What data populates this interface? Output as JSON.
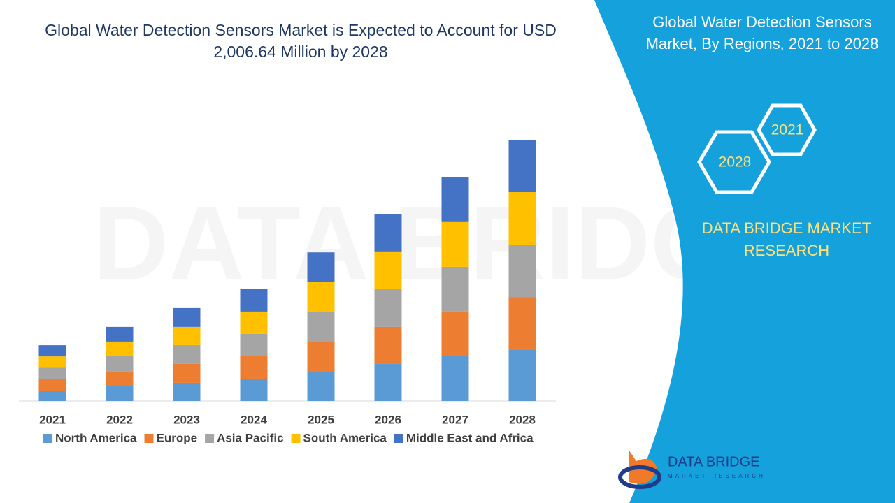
{
  "chart_data": {
    "type": "stacked_bar",
    "title": "Global Water Detection Sensors Market  is Expected to Account for USD 2,006.64 Million by 2028",
    "categories": [
      "2021",
      "2022",
      "2023",
      "2024",
      "2025",
      "2026",
      "2027",
      "2028"
    ],
    "series": [
      {
        "name": "North America",
        "color": "#5b9bd5",
        "values": [
          80,
          113,
          140,
          172,
          225,
          285,
          344,
          397
        ]
      },
      {
        "name": "Europe",
        "color": "#ed7d31",
        "values": [
          91,
          113,
          145,
          172,
          231,
          285,
          344,
          403
        ]
      },
      {
        "name": "Asia Pacific",
        "color": "#a5a5a5",
        "values": [
          86,
          118,
          145,
          172,
          231,
          290,
          344,
          403
        ]
      },
      {
        "name": "South America",
        "color": "#ffc000",
        "values": [
          86,
          113,
          140,
          172,
          231,
          285,
          344,
          403
        ]
      },
      {
        "name": "Middle East and Africa",
        "color": "#4472c4",
        "values": [
          86,
          113,
          145,
          172,
          225,
          290,
          344,
          403
        ]
      }
    ]
  },
  "panel": {
    "title": "Global Water Detection Sensors Market, By Regions, 2021 to 2028",
    "hex_top": "2021",
    "hex_bottom": "2028",
    "brand": "DATA BRIDGE MARKET RESEARCH"
  },
  "logo": {
    "name": "DATA BRIDGE",
    "tagline": "MARKET RESEARCH"
  }
}
